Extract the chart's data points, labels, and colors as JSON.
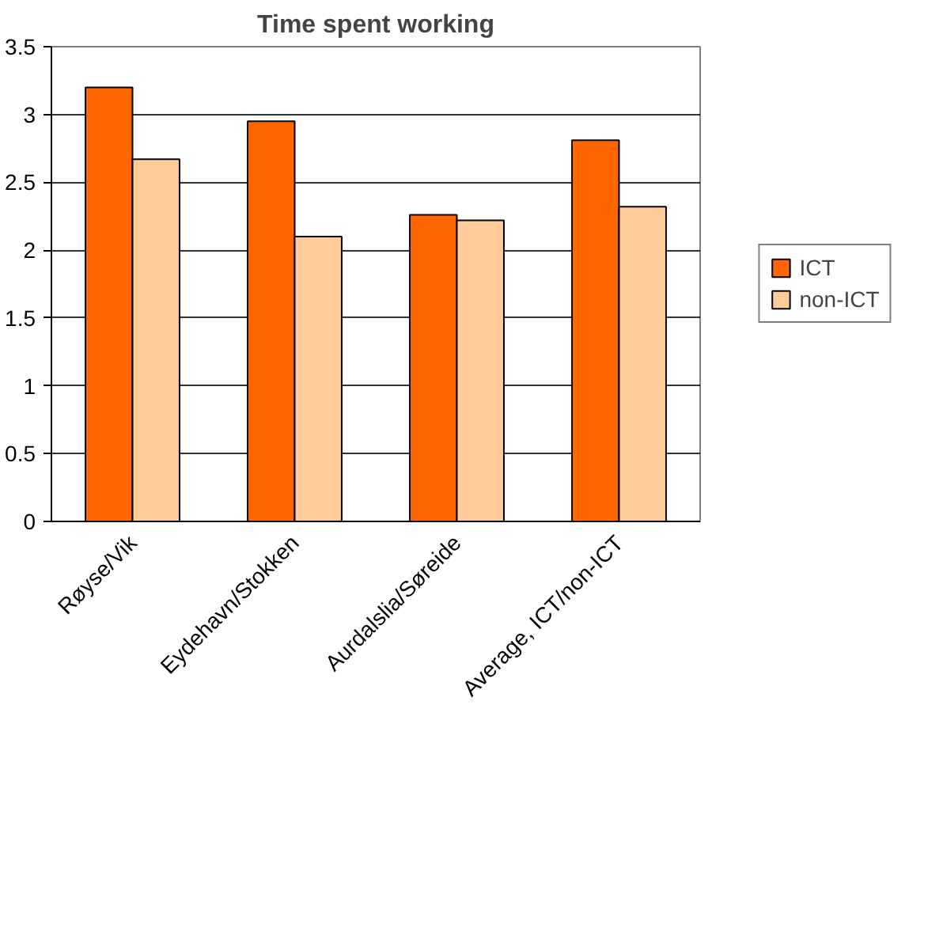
{
  "chart_data": {
    "type": "bar",
    "title": "Time spent working",
    "categories": [
      "Røyse/Vik",
      "Eydehavn/Stokken",
      "Aurdalslia/Søreide",
      "Average, ICT/non-ICT"
    ],
    "series": [
      {
        "name": "ICT",
        "color": "#ff6600",
        "values": [
          3.2,
          2.95,
          2.26,
          2.81
        ]
      },
      {
        "name": "non-ICT",
        "color": "#ffcc99",
        "values": [
          2.67,
          2.1,
          2.22,
          2.32
        ]
      }
    ],
    "ylim": [
      0,
      3.5
    ],
    "yticks": [
      0,
      0.5,
      1,
      1.5,
      2,
      2.5,
      3,
      3.5
    ],
    "grid": "y",
    "legend": "right"
  }
}
